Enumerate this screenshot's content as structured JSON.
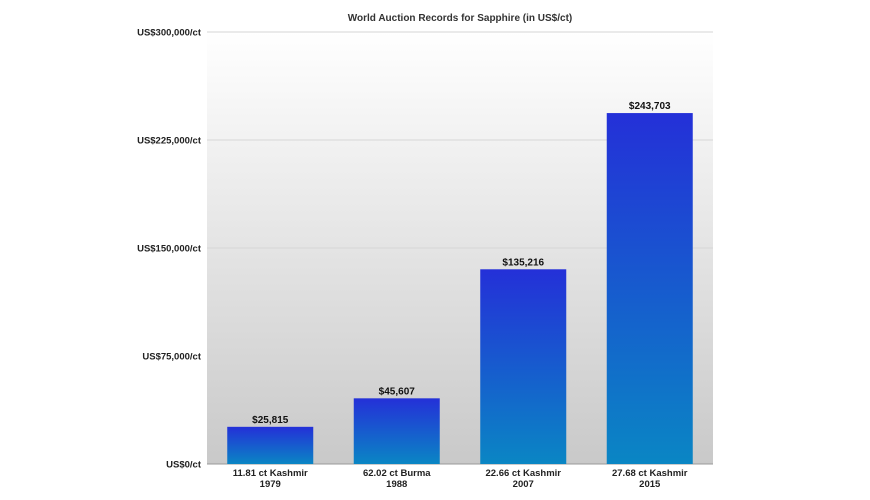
{
  "chart_data": {
    "type": "bar",
    "title": "World Auction Records for Sapphire (in US$/ct)",
    "categories": [
      [
        "11.81 ct Kashmir",
        "1979"
      ],
      [
        "62.02 ct Burma",
        "1988"
      ],
      [
        "22.66 ct Kashmir",
        "2007"
      ],
      [
        "27.68 ct Kashmir",
        "2015"
      ]
    ],
    "values": [
      25815,
      45607,
      135216,
      243703
    ],
    "data_labels": [
      "$25,815",
      "$45,607",
      "$135,216",
      "$243,703"
    ],
    "ylim": [
      0,
      300000
    ],
    "yticks": [
      0,
      75000,
      150000,
      225000,
      300000
    ],
    "ytick_labels": [
      "US$0/ct",
      "US$75,000/ct",
      "US$150,000/ct",
      "US$225,000/ct",
      "US$300,000/ct"
    ],
    "grid": true,
    "legend": "none",
    "colors": {
      "bar_top": "#2430d8",
      "bar_bottom": "#0a86c4",
      "plot_bg_top": "#ffffff",
      "plot_bg_bottom": "#c9c9c9",
      "grid": "#d6d6d6"
    }
  }
}
